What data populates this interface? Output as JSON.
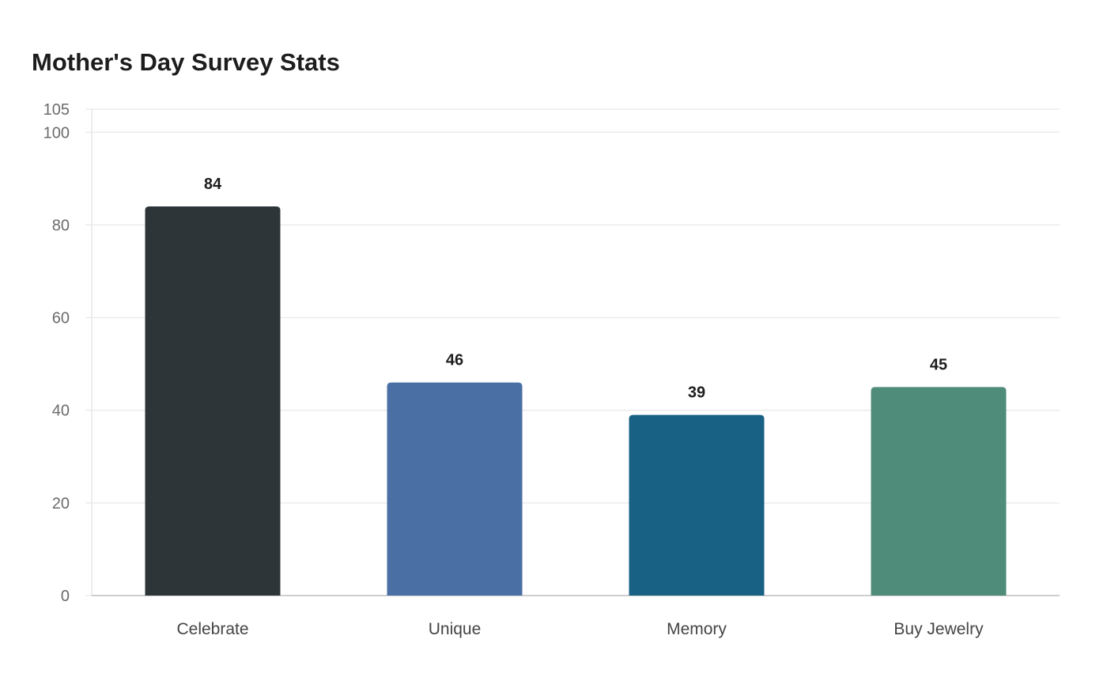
{
  "chart_data": {
    "type": "bar",
    "title": "Mother's Day Survey Stats",
    "xlabel": "",
    "ylabel": "",
    "categories": [
      "Celebrate",
      "Unique",
      "Memory",
      "Buy Jewelry"
    ],
    "values": [
      84,
      46,
      39,
      45
    ],
    "colors": [
      "#2e3538",
      "#4a6fa5",
      "#186185",
      "#4f8c7a"
    ],
    "ylim": [
      0,
      105
    ],
    "yticks": [
      0,
      20,
      40,
      60,
      80,
      100,
      105
    ],
    "grid": true,
    "legend": "none"
  }
}
